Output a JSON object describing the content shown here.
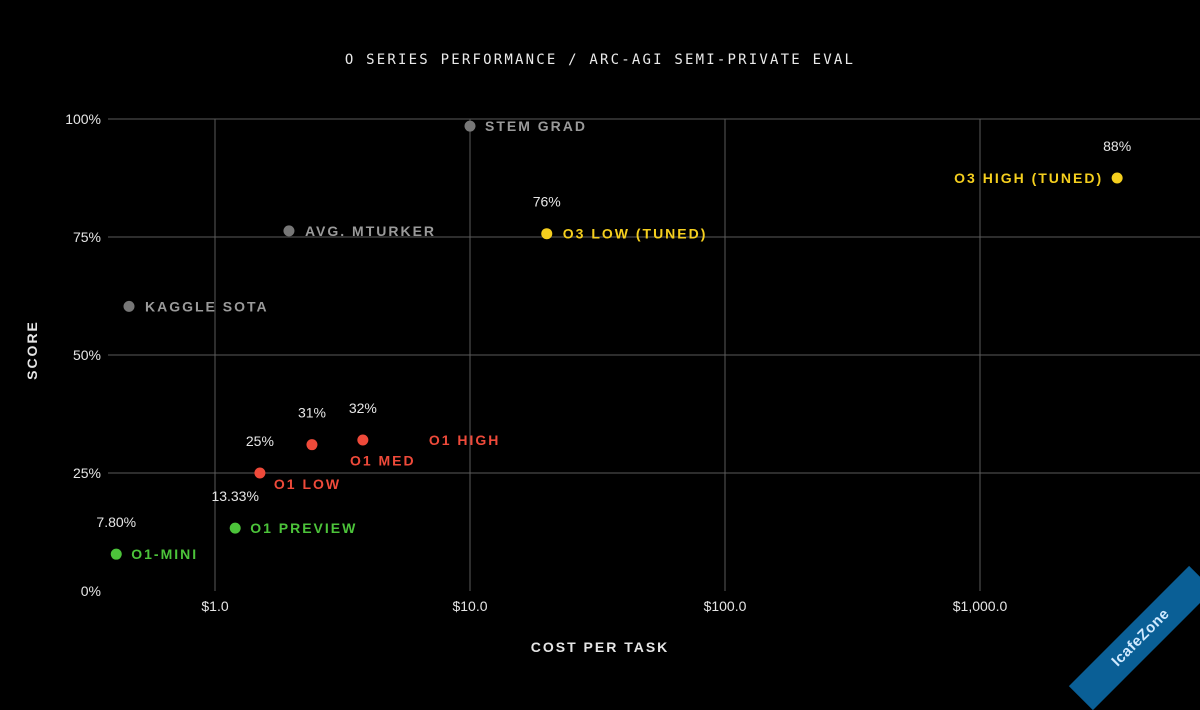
{
  "chart_data": {
    "type": "scatter",
    "title": "O SERIES PERFORMANCE / ARC-AGI SEMI-PRIVATE EVAL",
    "xlabel": "COST PER TASK",
    "ylabel": "SCORE",
    "x_scale": "log",
    "xlim": [
      0.38,
      5000
    ],
    "ylim": [
      0,
      100
    ],
    "x_ticks": [
      {
        "value": 1,
        "label": "$1.0"
      },
      {
        "value": 10,
        "label": "$10.0"
      },
      {
        "value": 100,
        "label": "$100.0"
      },
      {
        "value": 1000,
        "label": "$1,000.0"
      }
    ],
    "y_ticks": [
      {
        "value": 0,
        "label": "0%"
      },
      {
        "value": 25,
        "label": "25%"
      },
      {
        "value": 50,
        "label": "50%"
      },
      {
        "value": 75,
        "label": "75%"
      },
      {
        "value": 100,
        "label": "100%"
      }
    ],
    "grid": true,
    "colors": {
      "gray": "#777777",
      "gray_text": "#9a9a9a",
      "red": "#ef4a3a",
      "green": "#4cc43a",
      "yellow": "#f5cf1e",
      "grid": "#5a5a5a",
      "text": "#e6e6e6"
    },
    "points": [
      {
        "name": "STEM GRAD",
        "x": 10.0,
        "y": 98.5,
        "value_label": "",
        "color": "gray"
      },
      {
        "name": "AVG. MTURKER",
        "x": 1.95,
        "y": 76.3,
        "value_label": "",
        "color": "gray"
      },
      {
        "name": "KAGGLE SOTA",
        "x": 0.46,
        "y": 60.3,
        "value_label": "",
        "color": "gray"
      },
      {
        "name": "O3 LOW (TUNED)",
        "x": 20.0,
        "y": 75.7,
        "value_label": "76%",
        "color": "yellow"
      },
      {
        "name": "O3 HIGH (TUNED)",
        "x": 3450,
        "y": 87.5,
        "value_label": "88%",
        "color": "yellow"
      },
      {
        "name": "O1 HIGH",
        "x": 3.8,
        "y": 32.0,
        "value_label": "32%",
        "color": "red"
      },
      {
        "name": "O1 MED",
        "x": 2.4,
        "y": 31.0,
        "value_label": "31%",
        "color": "red"
      },
      {
        "name": "O1 LOW",
        "x": 1.5,
        "y": 25.0,
        "value_label": "25%",
        "color": "red"
      },
      {
        "name": "O1 PREVIEW",
        "x": 1.2,
        "y": 13.33,
        "value_label": "13.33%",
        "color": "green"
      },
      {
        "name": "O1-MINI",
        "x": 0.41,
        "y": 7.8,
        "value_label": "7.80%",
        "color": "green"
      }
    ]
  },
  "watermark": {
    "text": "IcafeZone"
  }
}
